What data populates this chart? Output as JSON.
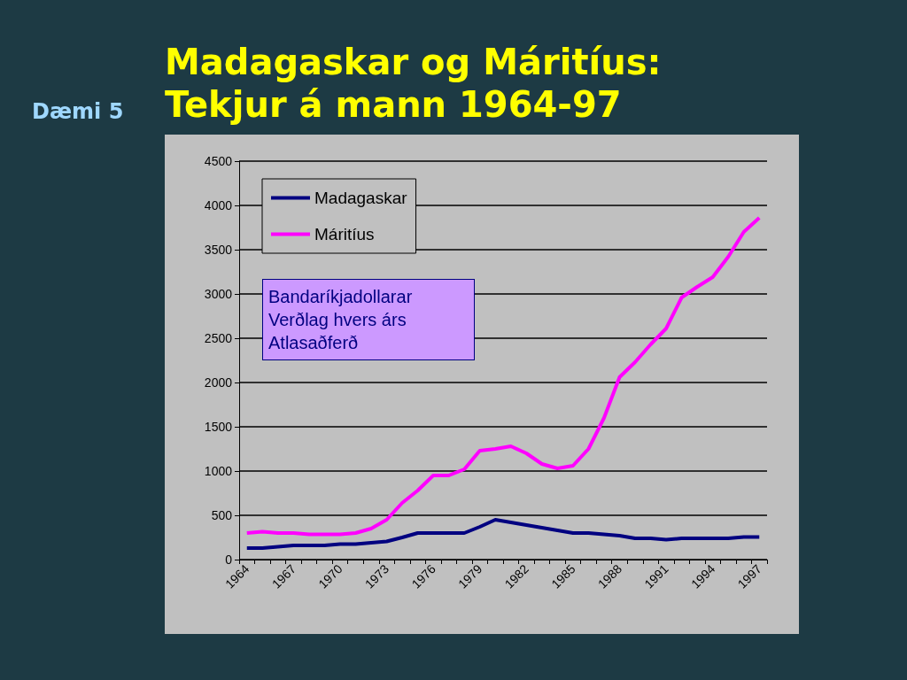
{
  "chart_data": {
    "type": "line",
    "title": "Madagaskar og Máritíus:\nTekjur á mann 1964-97",
    "subtitle": "Dæmi 5",
    "categories": [
      "1964",
      null,
      null,
      "1967",
      null,
      null,
      "1970",
      null,
      null,
      "1973",
      null,
      null,
      "1976",
      null,
      null,
      "1979",
      null,
      null,
      "1982",
      null,
      null,
      "1985",
      null,
      null,
      "1988",
      null,
      null,
      "1991",
      null,
      null,
      "1994",
      null,
      null,
      "1997"
    ],
    "series": [
      {
        "name": "Madagaskar",
        "color": "#000080",
        "values": [
          130,
          130,
          145,
          160,
          160,
          160,
          175,
          175,
          190,
          205,
          250,
          300,
          300,
          300,
          300,
          370,
          450,
          420,
          390,
          360,
          330,
          300,
          300,
          285,
          270,
          240,
          240,
          225,
          240,
          240,
          240,
          240,
          255,
          255
        ]
      },
      {
        "name": "Máritíus",
        "color": "#ff00ff",
        "values": [
          300,
          315,
          300,
          300,
          285,
          285,
          285,
          300,
          350,
          450,
          640,
          780,
          950,
          950,
          1020,
          1230,
          1250,
          1280,
          1200,
          1080,
          1030,
          1060,
          1250,
          1600,
          2060,
          2230,
          2430,
          2610,
          2960,
          3080,
          3190,
          3420,
          3700,
          3860
        ]
      }
    ],
    "ylim": [
      0,
      4500
    ],
    "yticks": [
      0,
      500,
      1000,
      1500,
      2000,
      2500,
      3000,
      3500,
      4000,
      4500
    ],
    "grid": "y",
    "legend": "top left",
    "marker": "none",
    "line_style": "solid",
    "annotations": [
      "Bandaríkjadollarar\nVerðlag hvers árs\nAtlasaðferð"
    ]
  }
}
